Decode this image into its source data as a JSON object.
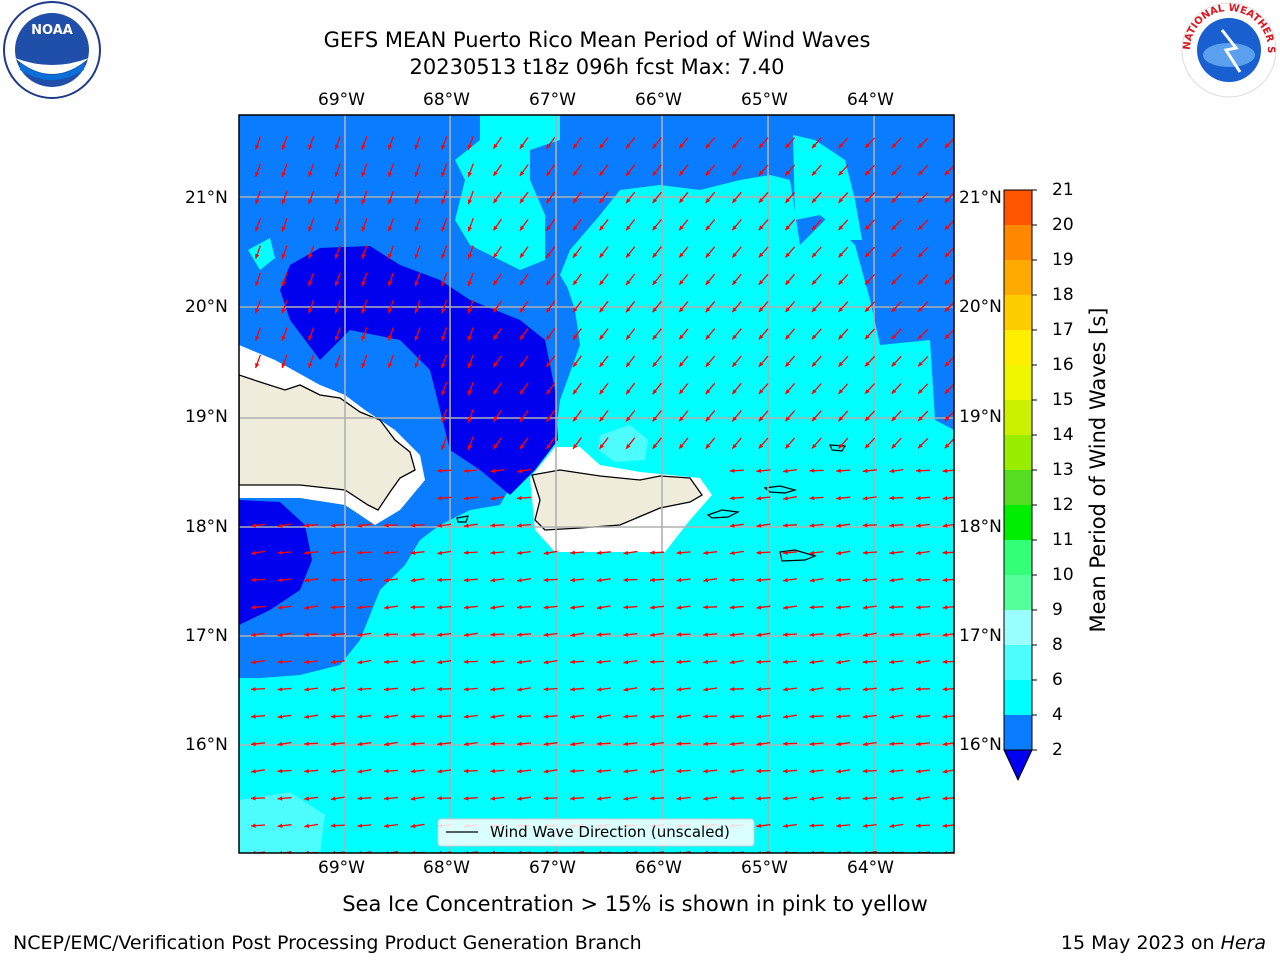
{
  "header": {
    "title_line1": "GEFS MEAN Puerto Rico Mean Period of Wind Waves",
    "title_line2": "20230513 t18z 096h fcst   Max: 7.40",
    "logo_left_text": "NOAA",
    "logo_left_ring_text": "NATIONAL OCEANIC AND ATMOSPHERIC ADMINISTRATION · U.S. DEPARTMENT OF COMMERCE",
    "logo_right_ring_text": "NATIONAL WEATHER SERVICE"
  },
  "map": {
    "lon_ticks": [
      "69°W",
      "68°W",
      "67°W",
      "66°W",
      "65°W",
      "64°W"
    ],
    "lat_ticks": [
      "21°N",
      "20°N",
      "19°N",
      "18°N",
      "17°N",
      "16°N"
    ],
    "legend_label": "Wind Wave Direction (unscaled)",
    "colors": {
      "level_2_4": "#0a7cff",
      "level_4_6": "#00ffff",
      "level_6_8": "#4dfcfc",
      "below_2": "#0000ee",
      "land": "#efecdc",
      "arrow": "#ff0000",
      "grid": "#b0b0b0"
    }
  },
  "colorbar": {
    "label": "Mean Period of Wind Waves [s]",
    "levels": [
      "21",
      "20",
      "19",
      "18",
      "17",
      "16",
      "15",
      "14",
      "13",
      "12",
      "11",
      "10",
      "9",
      "8",
      "6",
      "4",
      "2"
    ],
    "colors": [
      "#ff0000",
      "#ff2200",
      "#ff5500",
      "#ff8800",
      "#ffaa00",
      "#ffcc00",
      "#ffee00",
      "#eef700",
      "#ccf000",
      "#99ee00",
      "#55dd22",
      "#00ee00",
      "#33ff77",
      "#55ff99",
      "#99ffff",
      "#4dfcfc",
      "#00ffff",
      "#0a7cff"
    ],
    "under_color": "#0000ee"
  },
  "footer": {
    "note": "Sea Ice Concentration > 15% is shown in pink to yellow",
    "credit": "NCEP/EMC/Verification Post Processing Product Generation Branch",
    "date_prefix": "15 May 2023 on ",
    "machine": "Hera"
  }
}
